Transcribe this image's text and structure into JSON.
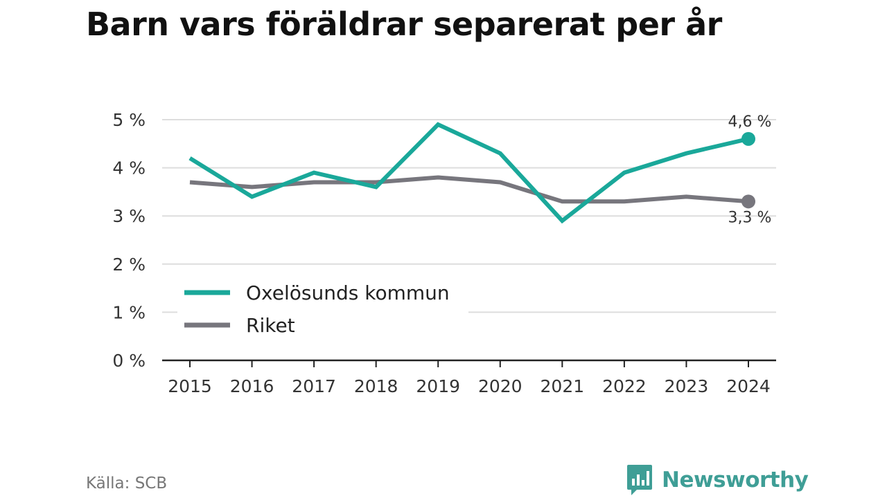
{
  "title": "Barn vars föräldrar separerat per år",
  "source": "Källa: SCB",
  "brand": "Newsworthy",
  "colors": {
    "accent": "#1aa89a",
    "secondary": "#77767d",
    "grid": "#dddddd",
    "axis": "#222222",
    "brand": "#3f9e96"
  },
  "icons": {
    "brand_logo": "newsworthy-logo-icon"
  },
  "chart_data": {
    "type": "line",
    "title": "Barn vars föräldrar separerat per år",
    "x": [
      "2015",
      "2016",
      "2017",
      "2018",
      "2019",
      "2020",
      "2021",
      "2022",
      "2023",
      "2024"
    ],
    "series": [
      {
        "name": "Oxelösunds kommun",
        "color": "#1aa89a",
        "values": [
          4.2,
          3.4,
          3.9,
          3.6,
          4.9,
          4.3,
          2.9,
          3.9,
          4.3,
          4.6
        ],
        "end_label": "4,6 %"
      },
      {
        "name": "Riket",
        "color": "#77767d",
        "values": [
          3.7,
          3.6,
          3.7,
          3.7,
          3.8,
          3.7,
          3.3,
          3.3,
          3.4,
          3.3
        ],
        "end_label": "3,3 %"
      }
    ],
    "ylim": [
      0,
      5
    ],
    "yticks": [
      0,
      1,
      2,
      3,
      4,
      5
    ],
    "ytick_labels": [
      "0 %",
      "1 %",
      "2 %",
      "3 %",
      "4 %",
      "5 %"
    ],
    "xlabel": "",
    "ylabel": "",
    "grid": true,
    "legend_position": "bottom-left"
  }
}
